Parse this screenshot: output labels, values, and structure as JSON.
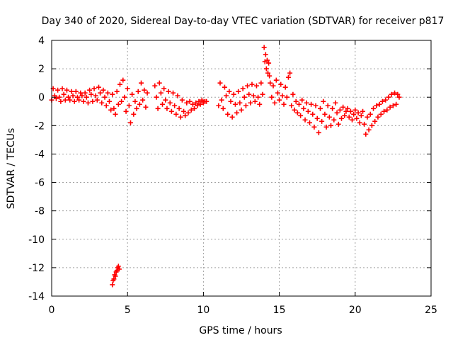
{
  "chart_data": {
    "type": "scatter",
    "title": "Day 340 of 2020, Sidereal Day-to-day VTEC variation (SDTVAR) for receiver p817",
    "xlabel": "GPS time / hours",
    "ylabel": "SDTVAR / TECUs",
    "xlim": [
      0,
      25
    ],
    "ylim": [
      -14,
      4
    ],
    "xticks": [
      0,
      5,
      10,
      15,
      20,
      25
    ],
    "xtick_labels": [
      "0",
      "5",
      "10",
      "15",
      "20",
      "25"
    ],
    "yticks": [
      4,
      2,
      0,
      -2,
      -4,
      -6,
      -8,
      -10,
      -12,
      -14
    ],
    "ytick_labels": [
      "4",
      "2",
      "0",
      "-2",
      "-4",
      "-6",
      "-8",
      "-10",
      "-12",
      "-14"
    ],
    "grid": true,
    "marker": "+",
    "colors": {
      "points": "#ff0000",
      "grid": "#a0a0a0",
      "frame": "#000000"
    },
    "series": [
      {
        "name": "SDTVAR",
        "points": [
          [
            0.0,
            -0.2
          ],
          [
            0.1,
            0.6
          ],
          [
            0.2,
            0.1
          ],
          [
            0.3,
            -0.1
          ],
          [
            0.4,
            0.5
          ],
          [
            0.5,
            0.0
          ],
          [
            0.6,
            -0.3
          ],
          [
            0.7,
            0.6
          ],
          [
            0.8,
            0.2
          ],
          [
            0.9,
            -0.2
          ],
          [
            1.0,
            0.5
          ],
          [
            1.1,
            0.0
          ],
          [
            1.2,
            -0.2
          ],
          [
            1.3,
            0.4
          ],
          [
            1.4,
            0.1
          ],
          [
            1.5,
            -0.3
          ],
          [
            1.6,
            0.4
          ],
          [
            1.7,
            0.0
          ],
          [
            1.8,
            -0.2
          ],
          [
            1.9,
            0.3
          ],
          [
            2.0,
            0.1
          ],
          [
            2.1,
            -0.3
          ],
          [
            2.2,
            0.3
          ],
          [
            2.3,
            0.0
          ],
          [
            2.4,
            -0.4
          ],
          [
            2.5,
            0.5
          ],
          [
            2.6,
            0.2
          ],
          [
            2.7,
            -0.3
          ],
          [
            2.8,
            0.6
          ],
          [
            2.9,
            0.1
          ],
          [
            3.0,
            -0.2
          ],
          [
            3.1,
            0.7
          ],
          [
            3.2,
            0.3
          ],
          [
            3.3,
            -0.4
          ],
          [
            3.4,
            0.5
          ],
          [
            3.5,
            0.0
          ],
          [
            3.6,
            -0.6
          ],
          [
            3.7,
            0.3
          ],
          [
            3.8,
            -0.3
          ],
          [
            3.9,
            -0.9
          ],
          [
            4.0,
            0.2
          ],
          [
            4.1,
            -0.8
          ],
          [
            4.2,
            -1.2
          ],
          [
            4.3,
            0.4
          ],
          [
            4.4,
            -0.5
          ],
          [
            4.5,
            0.9
          ],
          [
            4.6,
            -0.3
          ],
          [
            4.7,
            1.2
          ],
          [
            4.8,
            0.0
          ],
          [
            4.9,
            -1.0
          ],
          [
            5.0,
            0.6
          ],
          [
            5.1,
            -0.6
          ],
          [
            5.2,
            -1.8
          ],
          [
            5.3,
            0.2
          ],
          [
            5.4,
            -1.2
          ],
          [
            5.5,
            -0.3
          ],
          [
            5.6,
            -0.8
          ],
          [
            5.7,
            0.4
          ],
          [
            5.8,
            -0.5
          ],
          [
            5.9,
            1.0
          ],
          [
            6.0,
            -0.2
          ],
          [
            6.1,
            0.5
          ],
          [
            6.2,
            -0.7
          ],
          [
            6.3,
            0.3
          ],
          [
            6.8,
            0.8
          ],
          [
            6.9,
            0.0
          ],
          [
            7.0,
            -0.8
          ],
          [
            7.1,
            1.0
          ],
          [
            7.2,
            0.3
          ],
          [
            7.3,
            -0.5
          ],
          [
            7.4,
            0.6
          ],
          [
            7.5,
            -0.2
          ],
          [
            7.6,
            -0.8
          ],
          [
            7.7,
            0.4
          ],
          [
            7.8,
            -0.4
          ],
          [
            7.9,
            -1.0
          ],
          [
            8.0,
            0.3
          ],
          [
            8.1,
            -0.6
          ],
          [
            8.2,
            -1.2
          ],
          [
            8.3,
            0.1
          ],
          [
            8.4,
            -0.8
          ],
          [
            8.5,
            -1.4
          ],
          [
            8.6,
            -0.2
          ],
          [
            8.7,
            -1.0
          ],
          [
            8.8,
            -1.3
          ],
          [
            8.9,
            -0.4
          ],
          [
            9.0,
            -1.1
          ],
          [
            9.1,
            -0.3
          ],
          [
            9.2,
            -0.9
          ],
          [
            9.3,
            -0.5
          ],
          [
            9.4,
            -0.8
          ],
          [
            9.5,
            -0.4
          ],
          [
            9.6,
            -0.6
          ],
          [
            9.7,
            -0.3
          ],
          [
            9.8,
            -0.5
          ],
          [
            9.9,
            -0.2
          ],
          [
            10.0,
            -0.4
          ],
          [
            10.1,
            -0.3
          ],
          [
            10.2,
            -0.3
          ],
          [
            11.0,
            -0.6
          ],
          [
            11.1,
            1.0
          ],
          [
            11.2,
            -0.2
          ],
          [
            11.3,
            -0.8
          ],
          [
            11.4,
            0.7
          ],
          [
            11.5,
            0.1
          ],
          [
            11.6,
            -1.2
          ],
          [
            11.7,
            0.4
          ],
          [
            11.8,
            -0.3
          ],
          [
            11.9,
            -1.4
          ],
          [
            12.0,
            0.2
          ],
          [
            12.1,
            -0.5
          ],
          [
            12.2,
            -1.1
          ],
          [
            12.3,
            0.4
          ],
          [
            12.4,
            -0.4
          ],
          [
            12.5,
            -0.9
          ],
          [
            12.6,
            0.6
          ],
          [
            12.7,
            0.0
          ],
          [
            12.8,
            -0.6
          ],
          [
            12.9,
            0.8
          ],
          [
            13.0,
            0.2
          ],
          [
            13.1,
            -0.4
          ],
          [
            13.2,
            0.9
          ],
          [
            13.3,
            0.1
          ],
          [
            13.4,
            -0.3
          ],
          [
            13.5,
            0.8
          ],
          [
            13.6,
            0.0
          ],
          [
            13.7,
            -0.5
          ],
          [
            13.8,
            1.0
          ],
          [
            13.9,
            0.2
          ],
          [
            14.0,
            3.5
          ],
          [
            14.05,
            2.5
          ],
          [
            14.1,
            3.0
          ],
          [
            14.15,
            2.0
          ],
          [
            14.2,
            2.6
          ],
          [
            14.25,
            1.7
          ],
          [
            14.3,
            2.4
          ],
          [
            14.35,
            1.5
          ],
          [
            14.4,
            1.0
          ],
          [
            14.5,
            0.0
          ],
          [
            14.6,
            0.8
          ],
          [
            14.7,
            -0.4
          ],
          [
            14.8,
            1.2
          ],
          [
            14.9,
            0.3
          ],
          [
            15.0,
            -0.2
          ],
          [
            15.1,
            0.9
          ],
          [
            15.2,
            0.1
          ],
          [
            15.3,
            -0.5
          ],
          [
            15.4,
            0.7
          ],
          [
            15.5,
            0.0
          ],
          [
            15.6,
            1.4
          ],
          [
            15.7,
            1.7
          ],
          [
            15.8,
            -0.6
          ],
          [
            15.9,
            0.2
          ],
          [
            16.0,
            -0.9
          ],
          [
            16.1,
            -0.3
          ],
          [
            16.2,
            -1.1
          ],
          [
            16.3,
            -0.5
          ],
          [
            16.4,
            -1.3
          ],
          [
            16.5,
            -0.2
          ],
          [
            16.6,
            -0.8
          ],
          [
            16.7,
            -1.6
          ],
          [
            16.8,
            -0.4
          ],
          [
            16.9,
            -1.0
          ],
          [
            17.0,
            -1.8
          ],
          [
            17.1,
            -0.5
          ],
          [
            17.2,
            -1.2
          ],
          [
            17.3,
            -2.1
          ],
          [
            17.4,
            -0.6
          ],
          [
            17.5,
            -1.5
          ],
          [
            17.6,
            -2.5
          ],
          [
            17.7,
            -0.8
          ],
          [
            17.8,
            -1.7
          ],
          [
            17.9,
            -0.3
          ],
          [
            18.0,
            -1.2
          ],
          [
            18.1,
            -2.1
          ],
          [
            18.2,
            -0.6
          ],
          [
            18.3,
            -1.4
          ],
          [
            18.4,
            -2.0
          ],
          [
            18.5,
            -0.8
          ],
          [
            18.6,
            -1.6
          ],
          [
            18.7,
            -0.4
          ],
          [
            18.8,
            -1.1
          ],
          [
            18.9,
            -1.9
          ],
          [
            19.0,
            -0.9
          ],
          [
            19.1,
            -1.5
          ],
          [
            19.2,
            -0.7
          ],
          [
            19.3,
            -1.3
          ],
          [
            19.4,
            -1.0
          ],
          [
            19.5,
            -0.8
          ],
          [
            19.6,
            -1.4
          ],
          [
            19.7,
            -1.0
          ],
          [
            19.8,
            -1.6
          ],
          [
            19.9,
            -1.2
          ],
          [
            20.0,
            -0.9
          ],
          [
            20.1,
            -1.5
          ],
          [
            20.2,
            -1.1
          ],
          [
            20.3,
            -1.8
          ],
          [
            20.4,
            -1.3
          ],
          [
            20.5,
            -1.0
          ],
          [
            20.6,
            -1.9
          ],
          [
            20.7,
            -2.6
          ],
          [
            20.8,
            -1.4
          ],
          [
            20.9,
            -2.3
          ],
          [
            21.0,
            -1.2
          ],
          [
            21.1,
            -2.0
          ],
          [
            21.2,
            -0.8
          ],
          [
            21.3,
            -1.7
          ],
          [
            21.4,
            -0.6
          ],
          [
            21.5,
            -1.4
          ],
          [
            21.6,
            -0.5
          ],
          [
            21.7,
            -1.2
          ],
          [
            21.8,
            -0.3
          ],
          [
            21.9,
            -1.0
          ],
          [
            22.0,
            -0.2
          ],
          [
            22.1,
            -0.9
          ],
          [
            22.2,
            0.0
          ],
          [
            22.3,
            -0.7
          ],
          [
            22.4,
            0.2
          ],
          [
            22.5,
            -0.6
          ],
          [
            22.6,
            0.3
          ],
          [
            22.7,
            -0.5
          ],
          [
            22.8,
            0.2
          ],
          [
            22.9,
            0.0
          ],
          [
            4.0,
            -13.2
          ],
          [
            4.05,
            -12.9
          ],
          [
            4.1,
            -12.8
          ],
          [
            4.15,
            -12.5
          ],
          [
            4.2,
            -12.6
          ],
          [
            4.25,
            -12.3
          ],
          [
            4.3,
            -12.2
          ],
          [
            4.35,
            -12.0
          ],
          [
            4.4,
            -11.9
          ],
          [
            4.45,
            -12.1
          ]
        ]
      }
    ]
  }
}
